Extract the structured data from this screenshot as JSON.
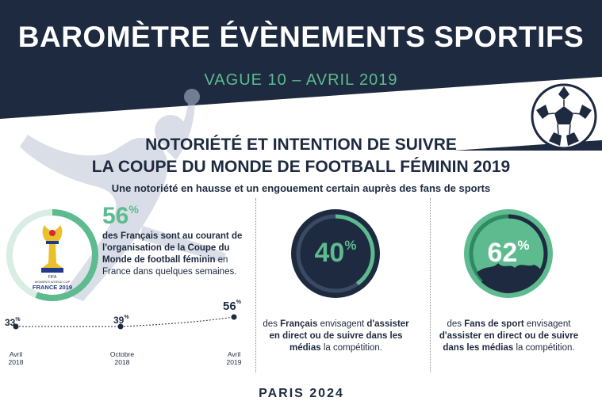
{
  "header": {
    "title": "BAROMÈTRE ÉVÈNEMENTS SPORTIFS",
    "subtitle": "VAGUE 10 – AVRIL 2019"
  },
  "section": {
    "heading_line1": "NOTORIÉTÉ ET INTENTION DE SUIVRE",
    "heading_line2": "LA COUPE DU MONDE DE FOOTBALL FÉMININ 2019",
    "tagline": "Une notoriété en hausse et un engouement certain auprès des fans de sports"
  },
  "logo": {
    "line1": "FIFA",
    "line2": "WOMEN'S WORLD CUP",
    "line3": "FRANCE 2019"
  },
  "awareness": {
    "value": "56",
    "unit": "%",
    "text_bold": "des Français sont au courant de l'organisation de la Coupe du Monde de football féminin",
    "text_rest": " en France dans quelques semaines."
  },
  "timeline": {
    "points": [
      {
        "value": "33",
        "unit": "%",
        "date_line1": "Avril",
        "date_line2": "2018"
      },
      {
        "value": "39",
        "unit": "%",
        "date_line1": "Octobre",
        "date_line2": "2018"
      },
      {
        "value": "56",
        "unit": "%",
        "date_line1": "Avril",
        "date_line2": "2019"
      }
    ]
  },
  "stat_francais": {
    "value": "40",
    "unit": "%",
    "fraction": 0.4,
    "text_pre": "des ",
    "text_bold1": "Français",
    "text_mid": " envisagent ",
    "text_bold2": "d'assister en direct ou de suivre dans les médias",
    "text_end": " la compétition."
  },
  "stat_fans": {
    "value": "62",
    "unit": "%",
    "fraction": 0.62,
    "text_pre": "des ",
    "text_bold1": "Fans de sport",
    "text_mid": " envisagent ",
    "text_bold2": "d'assister en direct ou de suivre dans les médias",
    "text_end": " la compétition."
  },
  "footer_cut": "PARIS 2024",
  "colors": {
    "navy": "#1e2a3f",
    "green": "#5dbb8f",
    "light_green": "#cfe9dc"
  }
}
